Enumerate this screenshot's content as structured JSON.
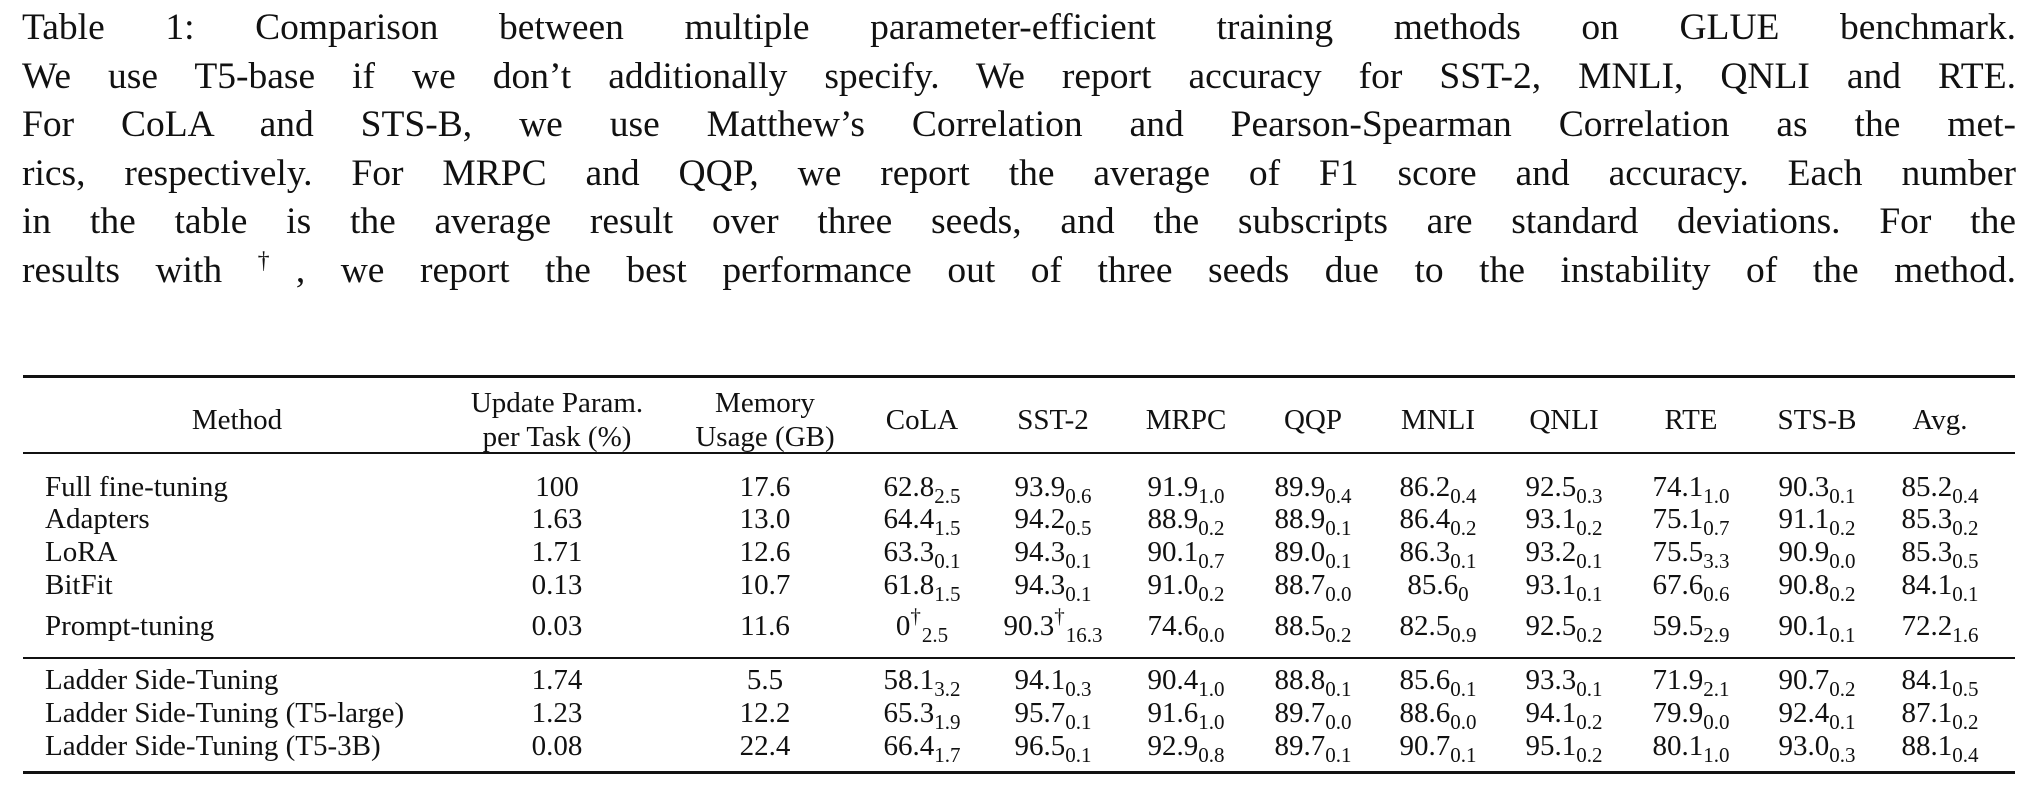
{
  "caption": {
    "lines": [
      "Table 1: Comparison between multiple parameter-efficient training methods on GLUE benchmark.",
      "We use T5-base if we don’t additionally specify. We report accuracy for SST-2, MNLI, QNLI and RTE.",
      "For CoLA and STS-B, we use Matthew’s Correlation and Pearson-Spearman Correlation as the met-",
      "rics, respectively. For MRPC and QQP, we report the average of F1 score and accuracy. Each number",
      "in the table is the average result over three seeds, and the subscripts are standard deviations. For the"
    ],
    "last_line": {
      "before": "results with ",
      "dagger": "†",
      "after": ", we report the best performance out of three seeds due to the instability of the method."
    }
  },
  "table": {
    "headers": [
      [
        "Method"
      ],
      [
        "Update Param.",
        "per Task (%)"
      ],
      [
        "Memory",
        "Usage (GB)"
      ],
      [
        "CoLA"
      ],
      [
        "SST-2"
      ],
      [
        "MRPC"
      ],
      [
        "QQP"
      ],
      [
        "MNLI"
      ],
      [
        "QNLI"
      ],
      [
        "RTE"
      ],
      [
        "STS-B"
      ],
      [
        "Avg."
      ]
    ],
    "groups": [
      [
        {
          "method": "Full fine-tuning",
          "param": "100",
          "memory": "17.6",
          "scores": [
            {
              "v": "62.8",
              "s": "2.5"
            },
            {
              "v": "93.9",
              "s": "0.6"
            },
            {
              "v": "91.9",
              "s": "1.0"
            },
            {
              "v": "89.9",
              "s": "0.4"
            },
            {
              "v": "86.2",
              "s": "0.4"
            },
            {
              "v": "92.5",
              "s": "0.3"
            },
            {
              "v": "74.1",
              "s": "1.0"
            },
            {
              "v": "90.3",
              "s": "0.1"
            },
            {
              "v": "85.2",
              "s": "0.4"
            }
          ]
        },
        {
          "method": "Adapters",
          "param": "1.63",
          "memory": "13.0",
          "scores": [
            {
              "v": "64.4",
              "s": "1.5"
            },
            {
              "v": "94.2",
              "s": "0.5"
            },
            {
              "v": "88.9",
              "s": "0.2"
            },
            {
              "v": "88.9",
              "s": "0.1"
            },
            {
              "v": "86.4",
              "s": "0.2"
            },
            {
              "v": "93.1",
              "s": "0.2"
            },
            {
              "v": "75.1",
              "s": "0.7"
            },
            {
              "v": "91.1",
              "s": "0.2"
            },
            {
              "v": "85.3",
              "s": "0.2"
            }
          ]
        },
        {
          "method": "LoRA",
          "param": "1.71",
          "memory": "12.6",
          "scores": [
            {
              "v": "63.3",
              "s": "0.1"
            },
            {
              "v": "94.3",
              "s": "0.1"
            },
            {
              "v": "90.1",
              "s": "0.7"
            },
            {
              "v": "89.0",
              "s": "0.1"
            },
            {
              "v": "86.3",
              "s": "0.1"
            },
            {
              "v": "93.2",
              "s": "0.1"
            },
            {
              "v": "75.5",
              "s": "3.3"
            },
            {
              "v": "90.9",
              "s": "0.0"
            },
            {
              "v": "85.3",
              "s": "0.5"
            }
          ]
        },
        {
          "method": "BitFit",
          "param": "0.13",
          "memory": "10.7",
          "scores": [
            {
              "v": "61.8",
              "s": "1.5"
            },
            {
              "v": "94.3",
              "s": "0.1"
            },
            {
              "v": "91.0",
              "s": "0.2"
            },
            {
              "v": "88.7",
              "s": "0.0"
            },
            {
              "v": "85.6",
              "s": "0"
            },
            {
              "v": "93.1",
              "s": "0.1"
            },
            {
              "v": "67.6",
              "s": "0.6"
            },
            {
              "v": "90.8",
              "s": "0.2"
            },
            {
              "v": "84.1",
              "s": "0.1"
            }
          ]
        },
        {
          "method": "Prompt-tuning",
          "param": "0.03",
          "memory": "11.6",
          "scores": [
            {
              "v": "0",
              "s": "2.5",
              "sup": "†"
            },
            {
              "v": "90.3",
              "s": "16.3",
              "sup": "†"
            },
            {
              "v": "74.6",
              "s": "0.0"
            },
            {
              "v": "88.5",
              "s": "0.2"
            },
            {
              "v": "82.5",
              "s": "0.9"
            },
            {
              "v": "92.5",
              "s": "0.2"
            },
            {
              "v": "59.5",
              "s": "2.9"
            },
            {
              "v": "90.1",
              "s": "0.1"
            },
            {
              "v": "72.2",
              "s": "1.6"
            }
          ]
        }
      ],
      [
        {
          "method": "Ladder Side-Tuning",
          "param": "1.74",
          "memory": "5.5",
          "scores": [
            {
              "v": "58.1",
              "s": "3.2"
            },
            {
              "v": "94.1",
              "s": "0.3"
            },
            {
              "v": "90.4",
              "s": "1.0"
            },
            {
              "v": "88.8",
              "s": "0.1"
            },
            {
              "v": "85.6",
              "s": "0.1"
            },
            {
              "v": "93.3",
              "s": "0.1"
            },
            {
              "v": "71.9",
              "s": "2.1"
            },
            {
              "v": "90.7",
              "s": "0.2"
            },
            {
              "v": "84.1",
              "s": "0.5"
            }
          ]
        },
        {
          "method": "Ladder Side-Tuning (T5-large)",
          "param": "1.23",
          "memory": "12.2",
          "scores": [
            {
              "v": "65.3",
              "s": "1.9"
            },
            {
              "v": "95.7",
              "s": "0.1"
            },
            {
              "v": "91.6",
              "s": "1.0"
            },
            {
              "v": "89.7",
              "s": "0.0"
            },
            {
              "v": "88.6",
              "s": "0.0"
            },
            {
              "v": "94.1",
              "s": "0.2"
            },
            {
              "v": "79.9",
              "s": "0.0"
            },
            {
              "v": "92.4",
              "s": "0.1"
            },
            {
              "v": "87.1",
              "s": "0.2"
            }
          ]
        },
        {
          "method": "Ladder Side-Tuning (T5-3B)",
          "param": "0.08",
          "memory": "22.4",
          "scores": [
            {
              "v": "66.4",
              "s": "1.7"
            },
            {
              "v": "96.5",
              "s": "0.1"
            },
            {
              "v": "92.9",
              "s": "0.8"
            },
            {
              "v": "89.7",
              "s": "0.1"
            },
            {
              "v": "90.7",
              "s": "0.1"
            },
            {
              "v": "95.1",
              "s": "0.2"
            },
            {
              "v": "80.1",
              "s": "1.0"
            },
            {
              "v": "93.0",
              "s": "0.3"
            },
            {
              "v": "88.1",
              "s": "0.4"
            }
          ]
        }
      ]
    ]
  }
}
